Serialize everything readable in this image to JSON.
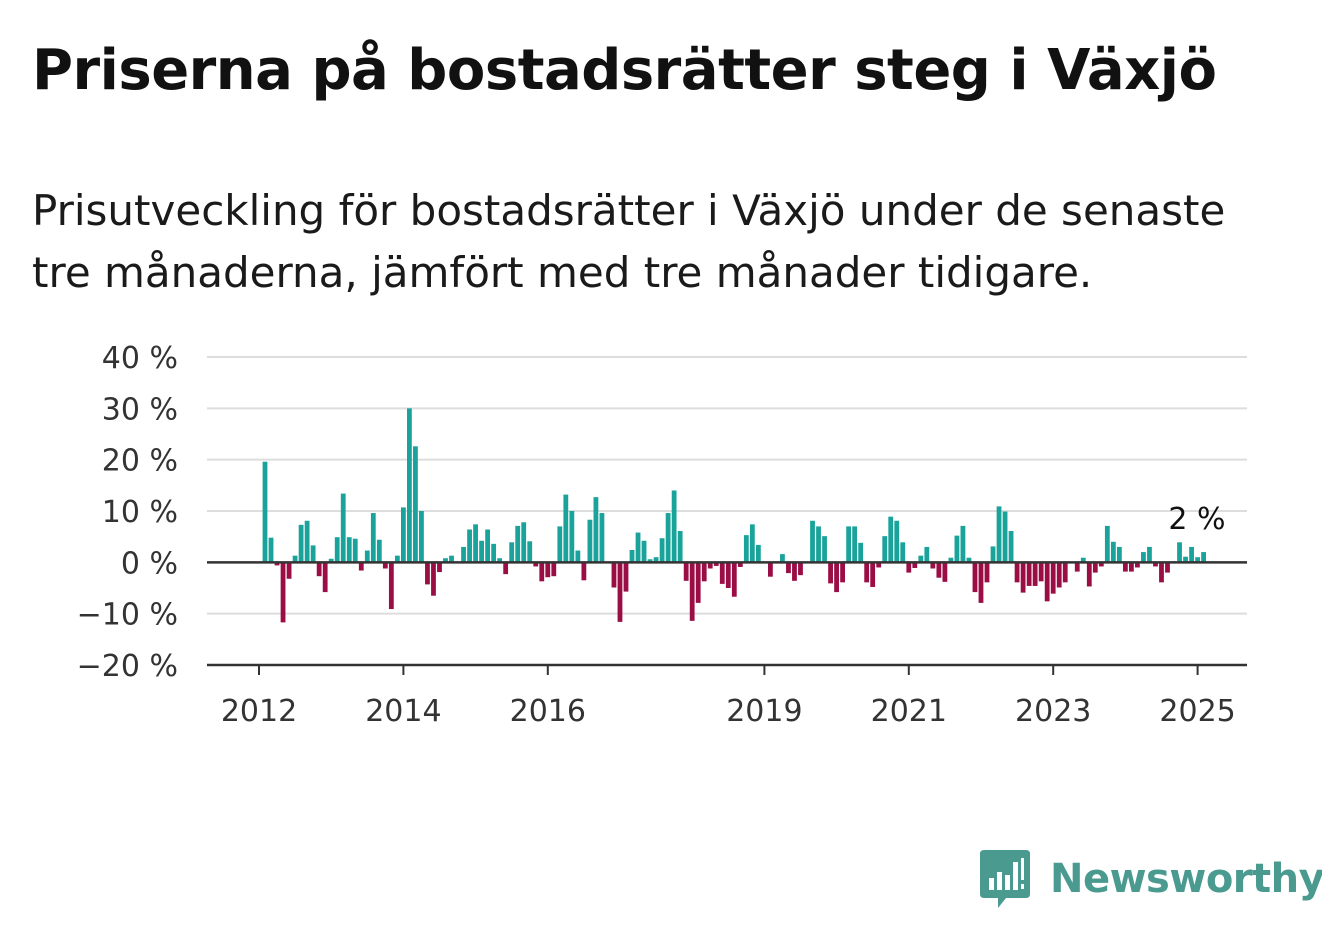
{
  "header": {
    "title": "Priserna på bostadsrätter steg i Växjö",
    "subtitle": "Prisutveckling för bostadsrätter i Växjö under de senaste tre månaderna, jämfört med tre månader tidigare."
  },
  "brand": {
    "name": "Newsworthy",
    "icon": "newsworthy-logo-icon"
  },
  "colors": {
    "positive": "#1aa39a",
    "negative": "#9b0d45",
    "grid": "#dddddd",
    "axis": "#333333"
  },
  "chart_data": {
    "type": "bar",
    "x_start": "2012-01",
    "y_ticks": [
      40,
      30,
      20,
      10,
      0,
      -10,
      -20
    ],
    "y_tick_labels": [
      "40 %",
      "30 %",
      "20 %",
      "10 %",
      "0 %",
      "−10 %",
      "−20 %"
    ],
    "ylim": [
      -20,
      40
    ],
    "x_ticks": [
      "2012",
      "2014",
      "2016",
      "2019",
      "2021",
      "2023",
      "2025"
    ],
    "grid": true,
    "end_label": "2 %",
    "series": [
      {
        "values": [
          19.6,
          4.8,
          -0.6,
          -11.7,
          -3.2,
          1.3,
          7.3,
          8.1,
          3.3,
          -2.7,
          -5.8,
          0.7,
          4.9,
          13.4,
          4.9,
          4.6,
          -1.6,
          2.3,
          9.6,
          4.4,
          -1.2,
          -9.1,
          1.3,
          10.7,
          30.0,
          22.6,
          10.0,
          -4.3,
          -6.5,
          -1.9,
          0.8,
          1.3,
          0.0,
          3.0,
          6.4,
          7.4,
          4.2,
          6.4,
          3.6,
          0.8,
          -2.3,
          3.9,
          7.1,
          7.8,
          4.1,
          -0.8,
          -3.7,
          -2.9,
          -2.7,
          7.0,
          13.2,
          10.0,
          2.3,
          -3.5,
          8.3,
          12.7,
          9.6,
          0.0,
          -4.9,
          -11.6,
          -5.7,
          2.4,
          5.8,
          4.2,
          0.6,
          1.0,
          4.7,
          9.6,
          14.0,
          6.1,
          -3.6,
          -11.4,
          -7.9,
          -3.7,
          -1.2,
          -0.7,
          -4.2,
          -5.0,
          -6.7,
          -0.9,
          5.3,
          7.4,
          3.4,
          0.0,
          -2.8,
          0.2,
          1.6,
          -2.1,
          -3.6,
          -2.5,
          0.0,
          8.1,
          7.0,
          5.1,
          -4.1,
          -5.8,
          -3.9,
          7.0,
          7.0,
          3.8,
          -3.9,
          -4.8,
          -1.0,
          5.1,
          8.9,
          8.1,
          3.9,
          -2.0,
          -1.1,
          1.3,
          3.0,
          -1.2,
          -3.0,
          -3.8,
          0.9,
          5.2,
          7.1,
          0.9,
          -5.8,
          -7.9,
          -3.9,
          3.1,
          10.9,
          9.9,
          6.1,
          -3.9,
          -5.9,
          -4.6,
          -4.6,
          -3.7,
          -7.6,
          -6.1,
          -4.9,
          -3.9,
          0.0,
          -1.8,
          0.9,
          -4.7,
          -2.0,
          -0.8,
          7.1,
          4.0,
          3.0,
          -1.8,
          -1.8,
          -1.0,
          2.0,
          3.0,
          -0.8,
          -3.9,
          -2.0,
          0.2,
          3.9,
          1.1,
          3.0,
          1.0,
          2.0
        ]
      }
    ]
  }
}
